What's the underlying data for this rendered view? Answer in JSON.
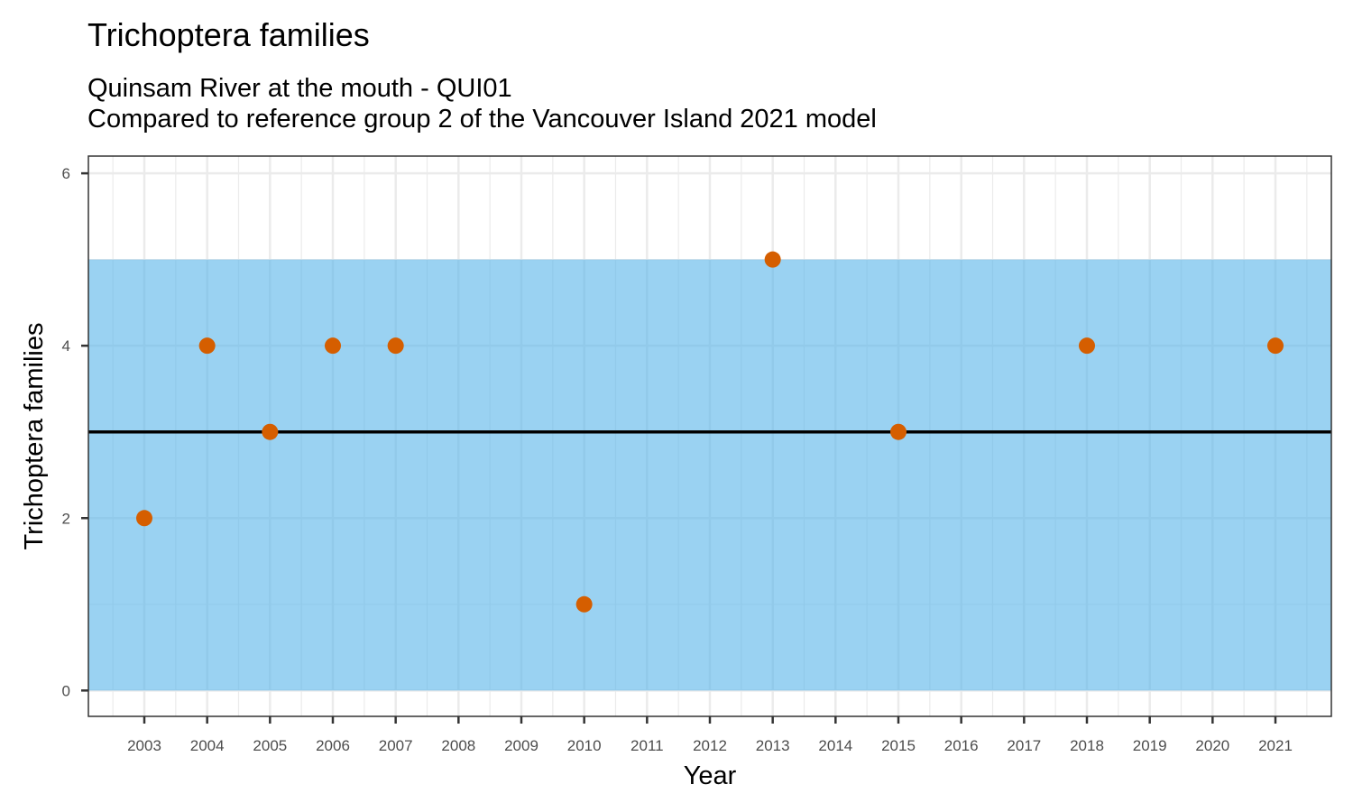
{
  "chart_data": {
    "type": "scatter",
    "title": "Trichoptera families",
    "subtitle": [
      "Quinsam River at the mouth - QUI01",
      "Compared to reference group 2 of the Vancouver Island 2021 model"
    ],
    "xlabel": "Year",
    "ylabel": "Trichoptera families",
    "x_ticks": [
      "2003",
      "2004",
      "2005",
      "2006",
      "2007",
      "2008",
      "2009",
      "2010",
      "2011",
      "2012",
      "2013",
      "2014",
      "2015",
      "2016",
      "2017",
      "2018",
      "2019",
      "2020",
      "2021"
    ],
    "y_ticks": [
      0,
      2,
      4,
      6
    ],
    "ylim": [
      -0.3,
      6.2
    ],
    "grid": true,
    "points": [
      {
        "x": "2003",
        "y": 2
      },
      {
        "x": "2004",
        "y": 4
      },
      {
        "x": "2005",
        "y": 3
      },
      {
        "x": "2006",
        "y": 4
      },
      {
        "x": "2007",
        "y": 4
      },
      {
        "x": "2010",
        "y": 1
      },
      {
        "x": "2013",
        "y": 5
      },
      {
        "x": "2015",
        "y": 3
      },
      {
        "x": "2018",
        "y": 4
      },
      {
        "x": "2021",
        "y": 4
      }
    ],
    "reference_band": {
      "lower": 0,
      "upper": 5
    },
    "reference_line": 3,
    "colors": {
      "points": "#d55e00",
      "band": "#56b4e9",
      "line": "#000000"
    }
  }
}
